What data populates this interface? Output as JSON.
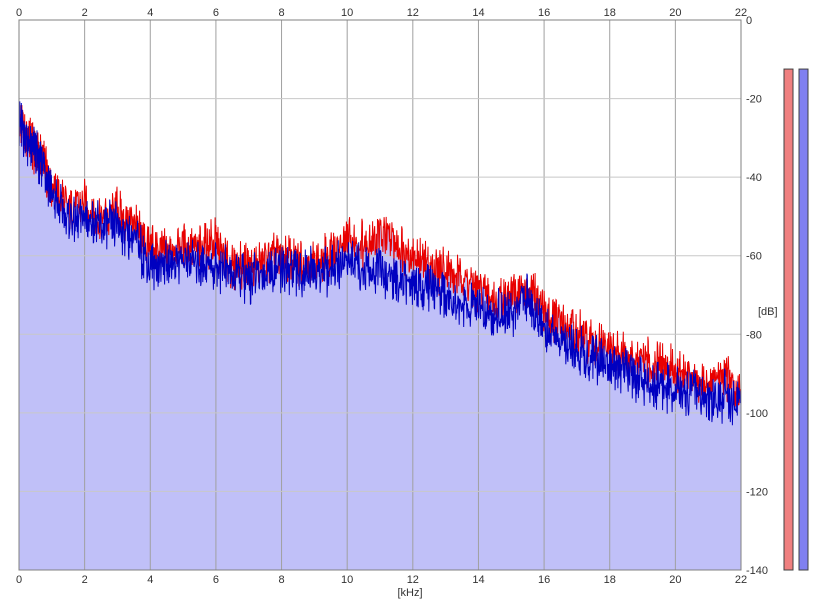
{
  "chart_data": {
    "type": "area",
    "xlabel": "[kHz]",
    "ylabel": "[dB]",
    "xlim": [
      0,
      22
    ],
    "ylim": [
      -140,
      0
    ],
    "x_ticks": [
      0,
      2,
      4,
      6,
      8,
      10,
      12,
      14,
      16,
      18,
      20,
      22
    ],
    "x_tick_labels": [
      "0",
      "2",
      "4",
      "6",
      "8",
      "10",
      "12",
      "14",
      "16",
      "18",
      "20",
      "22"
    ],
    "y_ticks": [
      0,
      -20,
      -40,
      -60,
      -80,
      -100,
      -120,
      -140
    ],
    "y_tick_labels": [
      "0",
      "-20",
      "-40",
      "-60",
      "-80",
      "-100",
      "-120",
      "-140"
    ],
    "grid": true,
    "fill_color": "#c0c0f8",
    "series": [
      {
        "color": "#e80000",
        "x": [
          0,
          0.25,
          0.5,
          0.75,
          1,
          1.5,
          2,
          2.5,
          3,
          3.5,
          4,
          4.5,
          5,
          5.5,
          6,
          6.5,
          7,
          7.5,
          8,
          8.5,
          9,
          9.5,
          10,
          10.5,
          11,
          11.5,
          12,
          12.5,
          13,
          13.5,
          14,
          14.5,
          15,
          15.5,
          16,
          16.5,
          17,
          17.5,
          18,
          18.5,
          19,
          19.5,
          20,
          20.5,
          21,
          21.5,
          22
        ],
        "y": [
          -25,
          -30,
          -33,
          -36,
          -42,
          -48,
          -47,
          -51,
          -49,
          -52,
          -58,
          -59,
          -57,
          -58,
          -57,
          -63,
          -63,
          -61,
          -60,
          -62,
          -62,
          -60,
          -56,
          -57,
          -55,
          -57,
          -60,
          -63,
          -64,
          -66,
          -68,
          -71,
          -70,
          -68,
          -74,
          -77,
          -80,
          -83,
          -84,
          -86,
          -87,
          -88,
          -89,
          -91,
          -92,
          -90,
          -96
        ]
      },
      {
        "color": "#0000c0",
        "x": [
          0,
          0.25,
          0.5,
          0.75,
          1,
          1.5,
          2,
          2.5,
          3,
          3.5,
          4,
          4.5,
          5,
          5.5,
          6,
          6.5,
          7,
          7.5,
          8,
          8.5,
          9,
          9.5,
          10,
          10.5,
          11,
          11.5,
          12,
          12.5,
          13,
          13.5,
          14,
          14.5,
          15,
          15.5,
          16,
          16.5,
          17,
          17.5,
          18,
          18.5,
          19,
          19.5,
          20,
          20.5,
          21,
          21.5,
          22
        ],
        "y": [
          -26,
          -31,
          -34,
          -37,
          -44,
          -51,
          -50,
          -53,
          -52,
          -56,
          -62,
          -62,
          -61,
          -62,
          -62,
          -65,
          -66,
          -64,
          -63,
          -65,
          -64,
          -64,
          -61,
          -64,
          -64,
          -66,
          -68,
          -68,
          -70,
          -72,
          -74,
          -75,
          -75,
          -70,
          -79,
          -82,
          -84,
          -86,
          -88,
          -89,
          -92,
          -93,
          -94,
          -94,
          -97,
          -96,
          -98
        ]
      }
    ]
  },
  "meters": [
    {
      "color": "#f08080",
      "level": 0.99
    },
    {
      "color": "#8080f0",
      "level": 0.99
    }
  ]
}
